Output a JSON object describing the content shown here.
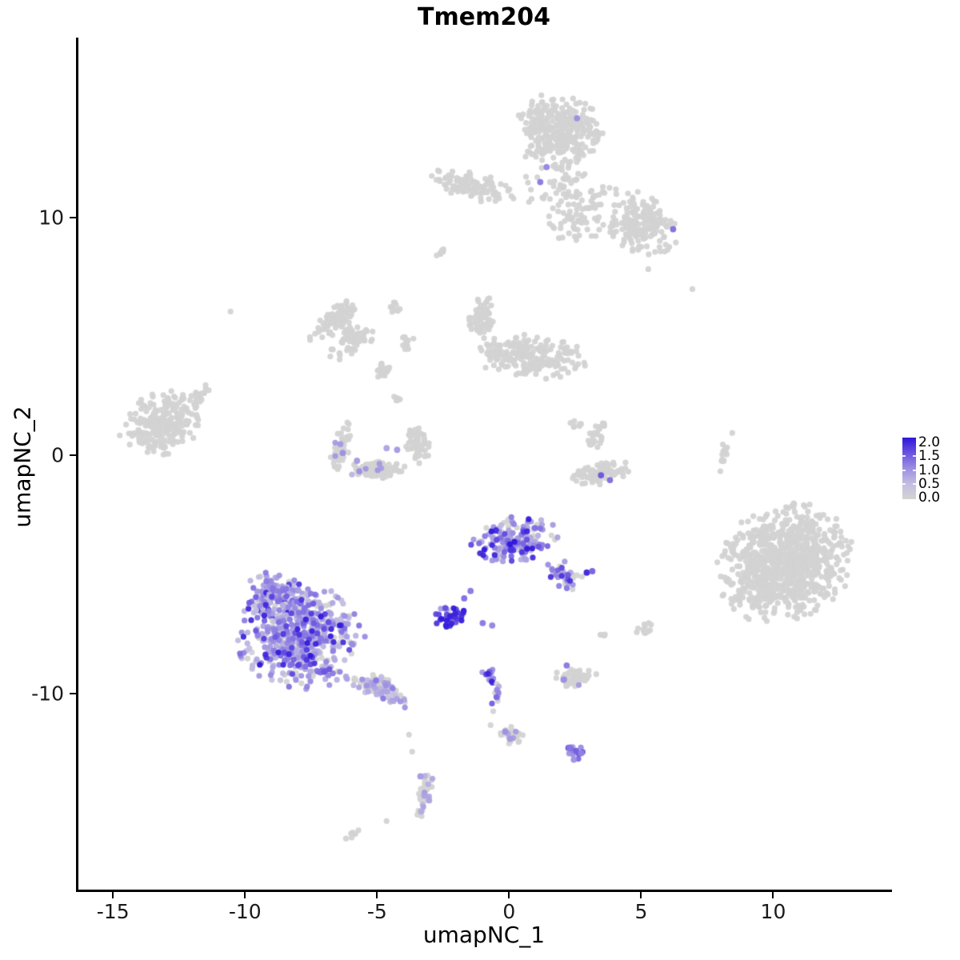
{
  "chart_data": {
    "type": "scatter",
    "title": "Tmem204",
    "xlabel": "umapNC_1",
    "ylabel": "umapNC_2",
    "xlim": [
      -16.4,
      14.5
    ],
    "ylim": [
      -18.35,
      17.55
    ],
    "grid": false,
    "x_ticks": [
      {
        "v": -15,
        "label": "-15"
      },
      {
        "v": -10,
        "label": "-10"
      },
      {
        "v": -5,
        "label": "-5"
      },
      {
        "v": 0,
        "label": "0"
      },
      {
        "v": 5,
        "label": "5"
      },
      {
        "v": 10,
        "label": "10"
      }
    ],
    "y_ticks": [
      {
        "v": 10,
        "label": "10"
      },
      {
        "v": 0,
        "label": "0"
      },
      {
        "v": -10,
        "label": "-10"
      }
    ],
    "legend": {
      "position": "right",
      "ticks": [
        {
          "v": 2.0,
          "label": "2.0"
        },
        {
          "v": 1.5,
          "label": "1.5"
        },
        {
          "v": 1.0,
          "label": "1.0"
        },
        {
          "v": 0.5,
          "label": "0.5"
        },
        {
          "v": 0.0,
          "label": "0.0"
        }
      ],
      "vmin": 0.0,
      "vmax": 2.0
    },
    "colors": {
      "stops": [
        {
          "t": 0.0,
          "c": "#D3D3D3"
        },
        {
          "t": 0.25,
          "c": "#C3BEE0"
        },
        {
          "t": 0.5,
          "c": "#9C8FE2"
        },
        {
          "t": 0.75,
          "c": "#6A53E0"
        },
        {
          "t": 1.0,
          "c": "#2E16DA"
        }
      ],
      "axis": "#000000"
    },
    "point_radius_px": 3.6,
    "profiles": {
      "grey": [
        [
          1.0,
          0,
          0
        ]
      ],
      "nearGrey": [
        [
          0.97,
          0,
          0
        ],
        [
          0.03,
          0.6,
          1.0
        ]
      ],
      "faint": [
        [
          0.78,
          0,
          0
        ],
        [
          0.22,
          0.5,
          0.9
        ]
      ],
      "mixA": [
        [
          0.34,
          0,
          0
        ],
        [
          0.3,
          0.5,
          0.9
        ],
        [
          0.26,
          0.9,
          1.4
        ],
        [
          0.1,
          1.5,
          2.0
        ]
      ],
      "mainB": [
        [
          0.18,
          0,
          0
        ],
        [
          0.4,
          0.4,
          0.8
        ],
        [
          0.32,
          0.8,
          1.3
        ],
        [
          0.1,
          1.4,
          2.0
        ]
      ],
      "mainB2": [
        [
          0.12,
          0,
          0
        ],
        [
          0.38,
          0.4,
          0.8
        ],
        [
          0.38,
          0.8,
          1.3
        ],
        [
          0.12,
          1.4,
          2.0
        ]
      ],
      "tailC": [
        [
          0.45,
          0,
          0
        ],
        [
          0.38,
          0.4,
          0.8
        ],
        [
          0.17,
          0.8,
          1.2
        ]
      ],
      "dark": [
        [
          0.05,
          0,
          0
        ],
        [
          0.15,
          0.8,
          1.2
        ],
        [
          0.8,
          1.5,
          2.0
        ]
      ],
      "knot": [
        [
          0.15,
          0,
          0
        ],
        [
          0.35,
          0.8,
          1.2
        ],
        [
          0.5,
          1.3,
          2.0
        ]
      ],
      "chain": [
        [
          0.4,
          0,
          0
        ],
        [
          0.45,
          0.6,
          1.2
        ],
        [
          0.15,
          1.3,
          1.8
        ]
      ],
      "medmix": [
        [
          0.45,
          0,
          0
        ],
        [
          0.55,
          0.8,
          1.5
        ]
      ]
    },
    "clusters": [
      {
        "name": "top-main",
        "x": 1.79,
        "y": 13.59,
        "rx": 1.67,
        "ry": 1.68,
        "rot": 0,
        "n": 330,
        "profile": "grey"
      },
      {
        "name": "top-halo",
        "x": 2.39,
        "y": 10.57,
        "rx": 2.12,
        "ry": 1.85,
        "rot": 30,
        "n": 120,
        "profile": "grey"
      },
      {
        "name": "top-right-lobe",
        "x": 4.97,
        "y": 9.66,
        "rx": 1.45,
        "ry": 1.28,
        "rot": 38,
        "n": 170,
        "profile": "grey"
      },
      {
        "name": "top-left-arm",
        "x": -1.55,
        "y": 11.34,
        "rx": 1.82,
        "ry": 0.62,
        "rot": 10,
        "n": 115,
        "profile": "grey"
      },
      {
        "name": "streak-a",
        "x": -2.64,
        "y": 8.52,
        "rx": 0.3,
        "ry": 0.13,
        "rot": -33,
        "n": 8,
        "profile": "grey"
      },
      {
        "name": "arc-left-band",
        "x": -6.7,
        "y": 5.64,
        "rx": 1.25,
        "ry": 0.5,
        "rot": -37,
        "n": 85,
        "profile": "grey"
      },
      {
        "name": "arc-left-blob",
        "x": -5.85,
        "y": 5.03,
        "rx": 0.72,
        "ry": 0.45,
        "rot": 0,
        "n": 45,
        "profile": "grey"
      },
      {
        "name": "arc-left-sparse",
        "x": -6.24,
        "y": 4.53,
        "rx": 1.0,
        "ry": 0.5,
        "rot": -20,
        "n": 25,
        "profile": "grey"
      },
      {
        "name": "chain1",
        "x": -4.42,
        "y": 6.21,
        "rx": 0.25,
        "ry": 0.35,
        "rot": 0,
        "n": 10,
        "profile": "grey"
      },
      {
        "name": "chain2",
        "x": -3.97,
        "y": 4.77,
        "rx": 0.28,
        "ry": 0.42,
        "rot": 10,
        "n": 12,
        "profile": "grey"
      },
      {
        "name": "chain3",
        "x": -4.85,
        "y": 3.62,
        "rx": 0.45,
        "ry": 0.4,
        "rot": 0,
        "n": 22,
        "profile": "grey"
      },
      {
        "name": "chain4",
        "x": -4.36,
        "y": 2.35,
        "rx": 0.25,
        "ry": 0.3,
        "rot": 0,
        "n": 8,
        "profile": "grey"
      },
      {
        "name": "center-lobe",
        "x": -1.06,
        "y": 5.81,
        "rx": 0.55,
        "ry": 0.95,
        "rot": 15,
        "n": 65,
        "profile": "grey"
      },
      {
        "name": "center-body",
        "x": 0.73,
        "y": 4.13,
        "rx": 2.25,
        "ry": 0.95,
        "rot": 5,
        "n": 210,
        "profile": "grey"
      },
      {
        "name": "left-main",
        "x": -13.27,
        "y": 1.28,
        "rx": 1.65,
        "ry": 1.4,
        "rot": -15,
        "n": 230,
        "profile": "grey"
      },
      {
        "name": "left-arm",
        "x": -11.79,
        "y": 2.55,
        "rx": 0.55,
        "ry": 0.28,
        "rot": -40,
        "n": 18,
        "profile": "grey"
      },
      {
        "name": "smile-left",
        "x": -6.42,
        "y": 0.34,
        "rx": 0.38,
        "ry": 1.15,
        "rot": 12,
        "n": 48,
        "profile": "nearGrey"
      },
      {
        "name": "smile-bottom",
        "x": -5.09,
        "y": -0.57,
        "rx": 1.05,
        "ry": 0.42,
        "rot": -4,
        "n": 95,
        "profile": "nearGrey"
      },
      {
        "name": "smile-right",
        "x": -3.58,
        "y": 0.5,
        "rx": 0.45,
        "ry": 0.95,
        "rot": -18,
        "n": 60,
        "profile": "grey"
      },
      {
        "name": "cright-arm",
        "x": 3.24,
        "y": 0.84,
        "rx": 0.3,
        "ry": 0.7,
        "rot": 15,
        "n": 26,
        "profile": "grey"
      },
      {
        "name": "cright-body",
        "x": 3.36,
        "y": -0.74,
        "rx": 1.25,
        "ry": 0.5,
        "rot": -8,
        "n": 85,
        "profile": "grey"
      },
      {
        "name": "cright-top",
        "x": 2.52,
        "y": 1.21,
        "rx": 0.35,
        "ry": 0.35,
        "rot": 0,
        "n": 7,
        "profile": "grey"
      },
      {
        "name": "thin-line",
        "x": 8.06,
        "y": 0.23,
        "rx": 0.15,
        "ry": 0.75,
        "rot": 8,
        "n": 15,
        "profile": "grey"
      },
      {
        "name": "right-big",
        "x": 10.36,
        "y": -4.56,
        "rx": 2.7,
        "ry": 2.5,
        "rot": -25,
        "n": 860,
        "profile": "grey"
      },
      {
        "name": "blob-sw",
        "x": 5.0,
        "y": -7.25,
        "rx": 0.42,
        "ry": 0.33,
        "rot": 0,
        "n": 12,
        "profile": "grey"
      },
      {
        "name": "streak-sw",
        "x": 3.42,
        "y": -7.58,
        "rx": 0.25,
        "ry": 0.12,
        "rot": -30,
        "n": 5,
        "profile": "grey"
      },
      {
        "name": "bottom-blob",
        "x": 0.0,
        "y": -11.78,
        "rx": 0.5,
        "ry": 0.38,
        "rot": 0,
        "n": 28,
        "profile": "faint"
      },
      {
        "name": "small-grey-mid",
        "x": 2.39,
        "y": -9.33,
        "rx": 0.85,
        "ry": 0.45,
        "rot": -6,
        "n": 58,
        "profile": "nearGrey"
      },
      {
        "name": "crescent",
        "x": -3.3,
        "y": -14.26,
        "rx": 0.35,
        "ry": 1.05,
        "rot": 14,
        "n": 36,
        "profile": "faint"
      },
      {
        "name": "streak-btm",
        "x": -6.0,
        "y": -15.94,
        "rx": 0.33,
        "ry": 0.12,
        "rot": -25,
        "n": 7,
        "profile": "grey"
      },
      {
        "name": "mid-expr-body",
        "x": 0.12,
        "y": -3.52,
        "rx": 1.7,
        "ry": 1.0,
        "rot": -8,
        "n": 185,
        "profile": "mixA"
      },
      {
        "name": "mid-expr-tail",
        "x": 2.0,
        "y": -5.1,
        "rx": 0.85,
        "ry": 0.55,
        "rot": 40,
        "n": 40,
        "profile": "chain"
      },
      {
        "name": "main-expr-top",
        "x": -8.82,
        "y": -5.87,
        "rx": 1.35,
        "ry": 1.05,
        "rot": 0,
        "n": 150,
        "profile": "mainB2"
      },
      {
        "name": "main-expr-big",
        "x": -8.0,
        "y": -7.65,
        "rx": 2.45,
        "ry": 2.3,
        "rot": 0,
        "n": 560,
        "profile": "mainB"
      },
      {
        "name": "main-expr-tail",
        "x": -5.09,
        "y": -9.73,
        "rx": 1.45,
        "ry": 0.55,
        "rot": 27,
        "n": 95,
        "profile": "tailC"
      },
      {
        "name": "dark-blob",
        "x": -2.36,
        "y": -6.78,
        "rx": 0.65,
        "ry": 0.45,
        "rot": -10,
        "n": 42,
        "profile": "dark"
      },
      {
        "name": "chain-knot",
        "x": -0.85,
        "y": -9.26,
        "rx": 0.3,
        "ry": 0.38,
        "rot": 0,
        "n": 13,
        "profile": "knot"
      },
      {
        "name": "chain-line",
        "x": -0.55,
        "y": -10.13,
        "rx": 0.18,
        "ry": 0.7,
        "rot": 12,
        "n": 12,
        "profile": "chain"
      },
      {
        "name": "bottom-knot",
        "x": 2.42,
        "y": -12.45,
        "rx": 0.42,
        "ry": 0.35,
        "rot": 0,
        "n": 13,
        "profile": "medmix"
      }
    ],
    "extra_points": [
      {
        "x": -10.64,
        "y": 6.04,
        "v": 0
      },
      {
        "x": 6.85,
        "y": 6.98,
        "v": 0
      },
      {
        "x": 5.18,
        "y": 7.82,
        "v": 0
      },
      {
        "x": -3.88,
        "y": -11.74,
        "v": 0
      },
      {
        "x": -3.76,
        "y": -12.45,
        "v": 0
      },
      {
        "x": -0.79,
        "y": -11.34,
        "v": 0
      },
      {
        "x": -4.73,
        "y": -15.37,
        "v": 0
      },
      {
        "x": 8.36,
        "y": 0.94,
        "v": 0
      },
      {
        "x": 7.91,
        "y": -0.67,
        "v": 0
      },
      {
        "x": 2.67,
        "y": -5.1,
        "v": 0
      },
      {
        "x": 2.48,
        "y": 14.16,
        "v": 1.0
      },
      {
        "x": 1.33,
        "y": 12.11,
        "v": 1.1
      },
      {
        "x": 1.09,
        "y": 11.48,
        "v": 1.2
      },
      {
        "x": 6.12,
        "y": 9.5,
        "v": 1.3
      },
      {
        "x": 2.85,
        "y": -4.93,
        "v": 1.9
      },
      {
        "x": 3.06,
        "y": -4.87,
        "v": 1.4
      },
      {
        "x": -1.09,
        "y": -7.05,
        "v": 1.2
      },
      {
        "x": -0.73,
        "y": -7.15,
        "v": 1.1
      },
      {
        "x": -1.79,
        "y": -6.01,
        "v": 1.3
      },
      {
        "x": -1.55,
        "y": -5.7,
        "v": 1.2
      },
      {
        "x": 3.39,
        "y": -0.84,
        "v": 1.5
      },
      {
        "x": 3.73,
        "y": -1.04,
        "v": 1.3
      },
      {
        "x": 2.09,
        "y": -8.83,
        "v": 1.2
      },
      {
        "x": 1.97,
        "y": -9.43,
        "v": 1.0
      },
      {
        "x": -6.48,
        "y": 0.47,
        "v": 0.9
      },
      {
        "x": -6.39,
        "y": 0.1,
        "v": 1.0
      },
      {
        "x": -5.85,
        "y": -0.23,
        "v": 0.9
      },
      {
        "x": -5.76,
        "y": -0.67,
        "v": 1.0
      },
      {
        "x": -4.73,
        "y": 0.3,
        "v": 0.8
      },
      {
        "x": -4.33,
        "y": 0.23,
        "v": 0.9
      },
      {
        "x": -3.45,
        "y": -13.49,
        "v": 0.9
      },
      {
        "x": -3.3,
        "y": -14.3,
        "v": 0.8
      },
      {
        "x": -3.12,
        "y": -14.5,
        "v": 0.8
      },
      {
        "x": -3.42,
        "y": -14.97,
        "v": 0.7
      },
      {
        "x": 2.21,
        "y": -12.28,
        "v": 1.2
      },
      {
        "x": 2.45,
        "y": -12.42,
        "v": 1.4
      },
      {
        "x": 2.64,
        "y": -12.52,
        "v": 1.1
      },
      {
        "x": 2.36,
        "y": -12.79,
        "v": 1.0
      },
      {
        "x": -0.24,
        "y": -11.61,
        "v": 1.0
      },
      {
        "x": -0.06,
        "y": -11.91,
        "v": 0.9
      }
    ]
  }
}
